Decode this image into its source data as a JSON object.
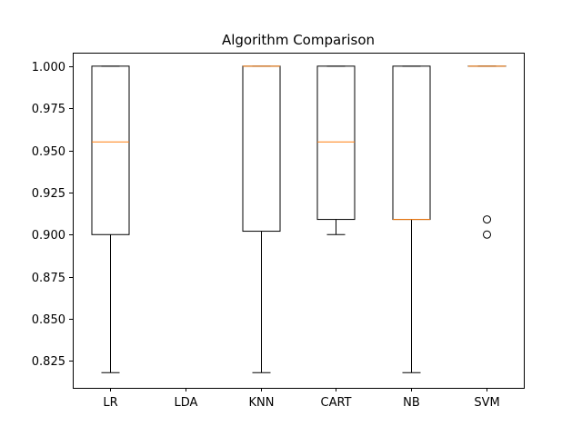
{
  "chart_data": {
    "type": "box",
    "title": "Algorithm Comparison",
    "xlabel": "",
    "ylabel": "",
    "ylim": [
      0.809,
      1.008
    ],
    "yticks": [
      0.825,
      0.85,
      0.875,
      0.9,
      0.925,
      0.95,
      0.975,
      1.0
    ],
    "ytick_labels": [
      "0.825",
      "0.850",
      "0.875",
      "0.900",
      "0.925",
      "0.950",
      "0.975",
      "1.000"
    ],
    "categories": [
      "LR",
      "LDA",
      "KNN",
      "CART",
      "NB",
      "SVM"
    ],
    "boxes": [
      {
        "category": "LR",
        "whisker_low": 0.818,
        "q1": 0.9,
        "median": 0.955,
        "q3": 1.0,
        "whisker_high": 1.0,
        "outliers": []
      },
      {
        "category": "LDA",
        "whisker_low": null,
        "q1": null,
        "median": null,
        "q3": null,
        "whisker_high": null,
        "outliers": []
      },
      {
        "category": "KNN",
        "whisker_low": 0.818,
        "q1": 0.902,
        "median": 1.0,
        "q3": 1.0,
        "whisker_high": 1.0,
        "outliers": []
      },
      {
        "category": "CART",
        "whisker_low": 0.9,
        "q1": 0.909,
        "median": 0.955,
        "q3": 1.0,
        "whisker_high": 1.0,
        "outliers": []
      },
      {
        "category": "NB",
        "whisker_low": 0.818,
        "q1": 0.909,
        "median": 0.909,
        "q3": 1.0,
        "whisker_high": 1.0,
        "outliers": []
      },
      {
        "category": "SVM",
        "whisker_low": 1.0,
        "q1": 1.0,
        "median": 1.0,
        "q3": 1.0,
        "whisker_high": 1.0,
        "outliers": [
          0.909,
          0.9
        ]
      }
    ],
    "grid": false,
    "colors": {
      "box": "#000000",
      "median": "#ff7f0e",
      "outlier": "#000000"
    }
  }
}
